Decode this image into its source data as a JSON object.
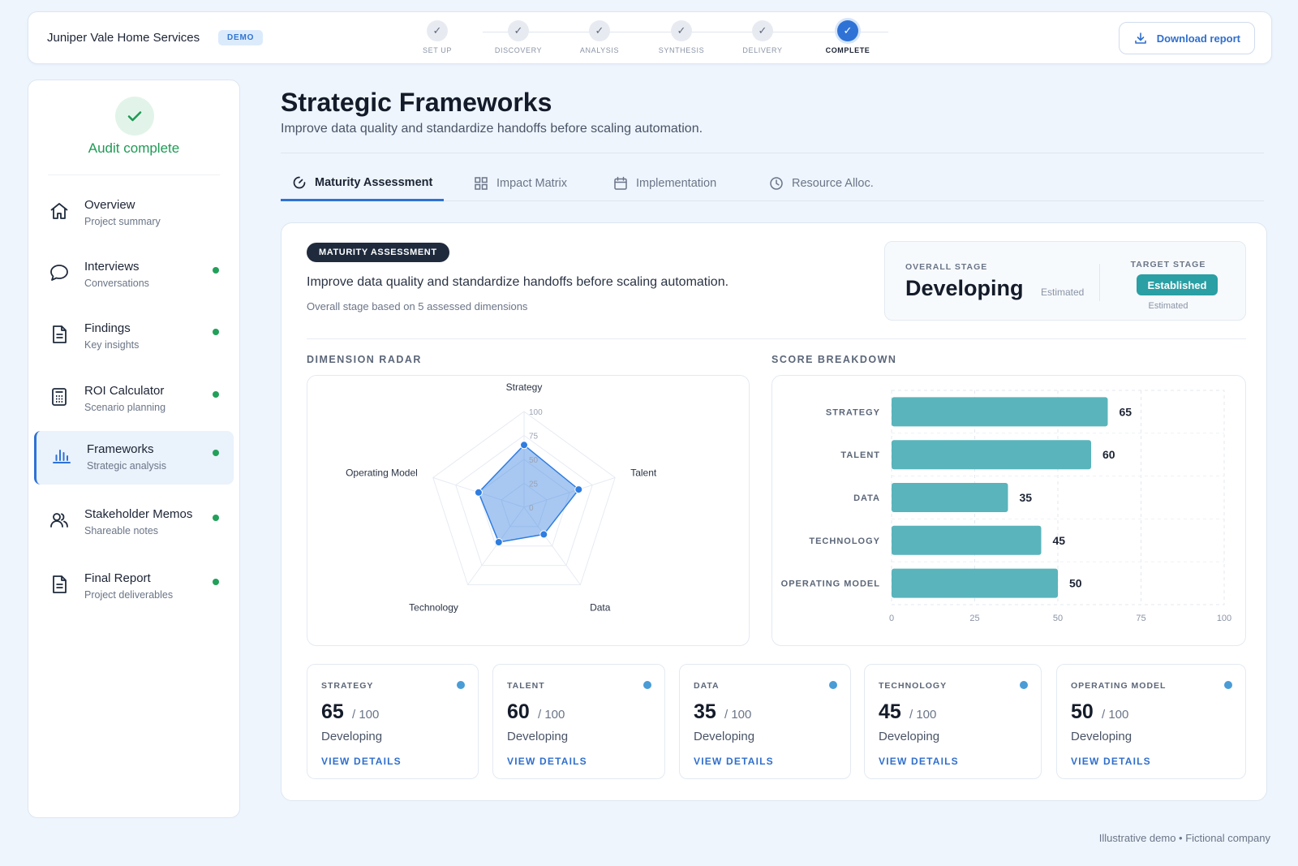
{
  "header": {
    "company": "Juniper Vale Home Services",
    "badge": "DEMO",
    "steps": [
      {
        "label": "SET UP",
        "status": "done"
      },
      {
        "label": "DISCOVERY",
        "status": "done"
      },
      {
        "label": "ANALYSIS",
        "status": "done"
      },
      {
        "label": "SYNTHESIS",
        "status": "done"
      },
      {
        "label": "DELIVERY",
        "status": "done"
      },
      {
        "label": "COMPLETE",
        "status": "current"
      }
    ],
    "download_label": "Download report"
  },
  "sidebar": {
    "status": "Audit complete",
    "items": [
      {
        "title": "Overview",
        "sub": "Project summary",
        "icon": "home-icon",
        "dot": false,
        "active": false
      },
      {
        "title": "Interviews",
        "sub": "Conversations",
        "icon": "chat-icon",
        "dot": true,
        "active": false
      },
      {
        "title": "Findings",
        "sub": "Key insights",
        "icon": "document-icon",
        "dot": true,
        "active": false
      },
      {
        "title": "ROI Calculator",
        "sub": "Scenario planning",
        "icon": "calculator-icon",
        "dot": true,
        "active": false
      },
      {
        "title": "Frameworks",
        "sub": "Strategic analysis",
        "icon": "bar-chart-icon",
        "dot": true,
        "active": true
      },
      {
        "title": "Stakeholder Memos",
        "sub": "Shareable notes",
        "icon": "users-icon",
        "dot": true,
        "active": false
      },
      {
        "title": "Final Report",
        "sub": "Project deliverables",
        "icon": "report-icon",
        "dot": true,
        "active": false
      }
    ]
  },
  "main": {
    "title": "Strategic Frameworks",
    "subtitle": "Improve data quality and standardize handoffs before scaling automation.",
    "tabs": [
      {
        "label": "Maturity Assessment",
        "icon": "gauge-icon",
        "active": true
      },
      {
        "label": "Impact Matrix",
        "icon": "grid-icon",
        "active": false
      },
      {
        "label": "Implementation",
        "icon": "calendar-icon",
        "active": false
      },
      {
        "label": "Resource Alloc.",
        "icon": "clock-icon",
        "active": false
      }
    ]
  },
  "card": {
    "badge": "MATURITY ASSESSMENT",
    "description": "Improve data quality and standardize handoffs before scaling automation.",
    "note": "Overall stage based on 5 assessed dimensions",
    "overall_label": "OVERALL STAGE",
    "overall_value": "Developing",
    "overall_note": "Estimated",
    "target_label": "TARGET STAGE",
    "target_value": "Established",
    "target_note": "Estimated",
    "radar_title": "DIMENSION RADAR",
    "bar_title": "SCORE BREAKDOWN"
  },
  "chart_data": [
    {
      "type": "radar",
      "categories": [
        "Strategy",
        "Talent",
        "Data",
        "Technology",
        "Operating Model"
      ],
      "values": [
        65,
        60,
        35,
        45,
        50
      ],
      "range": [
        0,
        100
      ],
      "ticks": [
        "0",
        "25",
        "50",
        "75",
        "100"
      ],
      "color": "#2f7de0"
    },
    {
      "type": "bar",
      "orientation": "horizontal",
      "categories": [
        "STRATEGY",
        "TALENT",
        "DATA",
        "TECHNOLOGY",
        "OPERATING MODEL"
      ],
      "values": [
        65,
        60,
        35,
        45,
        50
      ],
      "xlim": [
        0,
        100
      ],
      "ticks": [
        "0",
        "25",
        "50",
        "75",
        "100"
      ],
      "color": "#5ab4bb"
    }
  ],
  "dimensions": [
    {
      "name": "STRATEGY",
      "score": "65",
      "max": "/ 100",
      "stage": "Developing",
      "link": "VIEW DETAILS"
    },
    {
      "name": "TALENT",
      "score": "60",
      "max": "/ 100",
      "stage": "Developing",
      "link": "VIEW DETAILS"
    },
    {
      "name": "DATA",
      "score": "35",
      "max": "/ 100",
      "stage": "Developing",
      "link": "VIEW DETAILS"
    },
    {
      "name": "TECHNOLOGY",
      "score": "45",
      "max": "/ 100",
      "stage": "Developing",
      "link": "VIEW DETAILS"
    },
    {
      "name": "OPERATING MODEL",
      "score": "50",
      "max": "/ 100",
      "stage": "Developing",
      "link": "VIEW DETAILS"
    }
  ],
  "footer": "Illustrative demo • Fictional company"
}
